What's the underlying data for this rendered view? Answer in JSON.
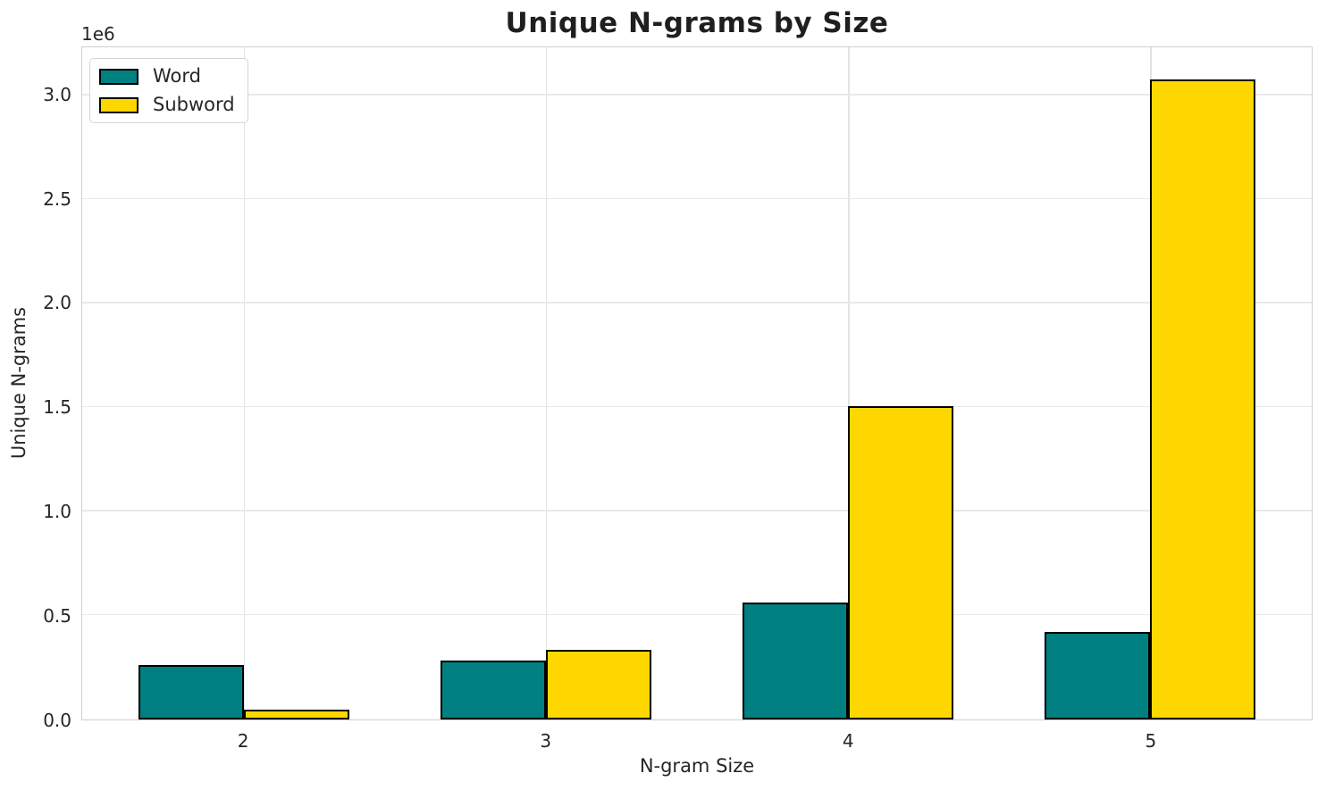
{
  "chart_data": {
    "type": "bar",
    "title": "Unique N-grams by Size",
    "xlabel": "N-gram Size",
    "ylabel": "Unique N-grams",
    "offset_label": "1e6",
    "categories": [
      "2",
      "3",
      "4",
      "5"
    ],
    "x_values": [
      2,
      3,
      4,
      5
    ],
    "series": [
      {
        "name": "Word",
        "color": "#008080",
        "values": [
          262000,
          285000,
          560000,
          421000
        ]
      },
      {
        "name": "Subword",
        "color": "#FFD700",
        "values": [
          48000,
          333000,
          1507000,
          3076000
        ]
      }
    ],
    "bar_width": 0.35,
    "bar_edge_color": "#000000",
    "xlim": [
      1.465,
      5.535
    ],
    "ylim": [
      0,
      3229800
    ],
    "yticks": [
      {
        "value": 0,
        "label": "0.0"
      },
      {
        "value": 500000,
        "label": "0.5"
      },
      {
        "value": 1000000,
        "label": "1.0"
      },
      {
        "value": 1500000,
        "label": "1.5"
      },
      {
        "value": 2000000,
        "label": "2.0"
      },
      {
        "value": 2500000,
        "label": "2.5"
      },
      {
        "value": 3000000,
        "label": "3.0"
      }
    ],
    "grid": true,
    "legend_position": "upper left"
  }
}
